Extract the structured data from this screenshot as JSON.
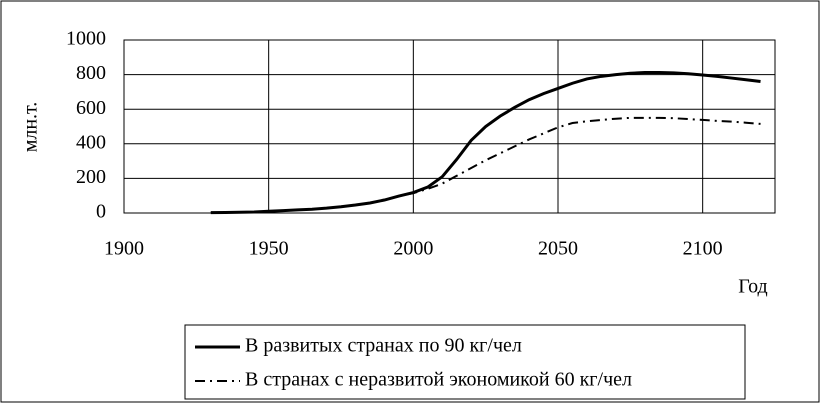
{
  "chart_data": {
    "type": "line",
    "y_label": "млн.т.",
    "x_label": "Год",
    "x": [
      1930,
      1935,
      1940,
      1945,
      1950,
      1955,
      1960,
      1965,
      1970,
      1975,
      1980,
      1985,
      1990,
      1995,
      2000,
      2005,
      2010,
      2015,
      2020,
      2025,
      2030,
      2035,
      2040,
      2045,
      2050,
      2055,
      2060,
      2065,
      2070,
      2075,
      2080,
      2085,
      2090,
      2095,
      2100,
      2105,
      2110,
      2115,
      2120
    ],
    "series": [
      {
        "name": "В развитых странах по 90 кг/чел",
        "color": "#000000",
        "dash": "solid",
        "values": [
          2,
          3,
          4,
          6,
          10,
          14,
          18,
          22,
          28,
          36,
          46,
          58,
          75,
          98,
          118,
          150,
          210,
          310,
          420,
          500,
          560,
          610,
          655,
          690,
          720,
          750,
          775,
          790,
          800,
          808,
          812,
          812,
          810,
          805,
          798,
          790,
          780,
          770,
          760
        ]
      },
      {
        "name": "В странах с неразвитой экономикой 60 кг/чел",
        "color": "#000000",
        "dash": "dashdot",
        "values": [
          2,
          3,
          4,
          6,
          10,
          14,
          18,
          22,
          28,
          36,
          46,
          58,
          75,
          98,
          115,
          140,
          170,
          215,
          260,
          305,
          345,
          385,
          425,
          460,
          495,
          520,
          530,
          538,
          545,
          550,
          550,
          550,
          548,
          543,
          538,
          532,
          528,
          522,
          515
        ]
      }
    ],
    "xlim": [
      1900,
      2125
    ],
    "xticks": [
      1900,
      1950,
      2000,
      2050,
      2100
    ],
    "ylim": [
      0,
      1000
    ],
    "yticks": [
      0,
      200,
      400,
      600,
      800,
      1000
    ],
    "grid": true,
    "legend": "bottom"
  }
}
